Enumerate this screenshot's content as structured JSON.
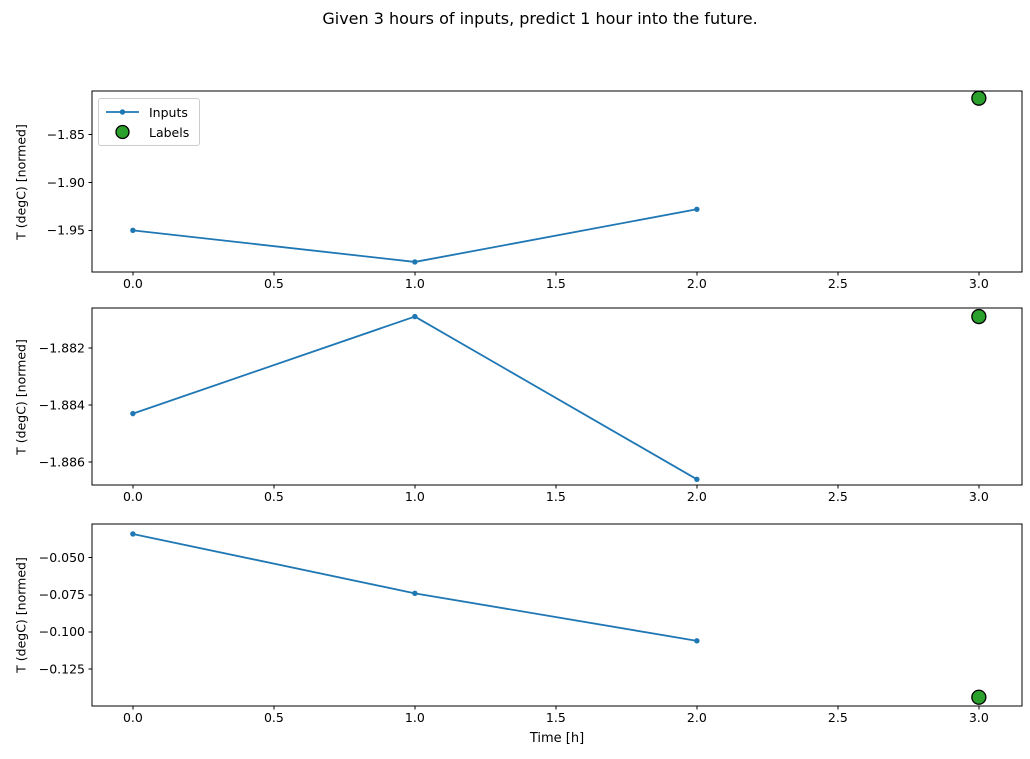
{
  "title": "Given 3 hours of inputs, predict 1 hour into the future.",
  "colors": {
    "inputs": "#1f77b4",
    "labels_fill": "#2ca02c",
    "labels_edge": "#000000",
    "axes": "#000000"
  },
  "legend": {
    "items": [
      {
        "label": "Inputs",
        "type": "line"
      },
      {
        "label": "Labels",
        "type": "point"
      }
    ]
  },
  "chart_data": [
    {
      "type": "line",
      "ylabel": "T (degC) [normed]",
      "xlabel": "",
      "x": [
        0.0,
        1.0,
        2.0
      ],
      "series": [
        {
          "name": "Inputs",
          "values": [
            -1.95,
            -1.983,
            -1.928
          ]
        }
      ],
      "label_point": {
        "name": "Labels",
        "x": 3.0,
        "y": -1.812
      },
      "xlim": [
        -0.145,
        3.153
      ],
      "ylim": [
        -1.9935,
        -1.8045
      ],
      "xticks": [
        0.0,
        0.5,
        1.0,
        1.5,
        2.0,
        2.5,
        3.0
      ],
      "xtick_labels": [
        "0.0",
        "0.5",
        "1.0",
        "1.5",
        "2.0",
        "2.5",
        "3.0"
      ],
      "yticks": [
        -1.85,
        -1.9,
        -1.95
      ],
      "ytick_labels": [
        "−1.85",
        "−1.90",
        "−1.95"
      ],
      "grid": false,
      "legend_visible": true
    },
    {
      "type": "line",
      "ylabel": "T (degC) [normed]",
      "xlabel": "",
      "x": [
        0.0,
        1.0,
        2.0
      ],
      "series": [
        {
          "name": "Inputs",
          "values": [
            -1.8843,
            -1.8809,
            -1.8866
          ]
        }
      ],
      "label_point": {
        "name": "Labels",
        "x": 3.0,
        "y": -1.8809
      },
      "xlim": [
        -0.145,
        3.153
      ],
      "ylim": [
        -1.8868,
        -1.8806
      ],
      "xticks": [
        0.0,
        0.5,
        1.0,
        1.5,
        2.0,
        2.5,
        3.0
      ],
      "xtick_labels": [
        "0.0",
        "0.5",
        "1.0",
        "1.5",
        "2.0",
        "2.5",
        "3.0"
      ],
      "yticks": [
        -1.882,
        -1.884,
        -1.886
      ],
      "ytick_labels": [
        "−1.882",
        "−1.884",
        "−1.886"
      ],
      "grid": false,
      "legend_visible": false
    },
    {
      "type": "line",
      "ylabel": "T (degC) [normed]",
      "xlabel": "Time [h]",
      "x": [
        0.0,
        1.0,
        2.0
      ],
      "series": [
        {
          "name": "Inputs",
          "values": [
            -0.034,
            -0.074,
            -0.106
          ]
        }
      ],
      "label_point": {
        "name": "Labels",
        "x": 3.0,
        "y": -0.144
      },
      "xlim": [
        -0.145,
        3.153
      ],
      "ylim": [
        -0.1499,
        -0.0273
      ],
      "xticks": [
        0.0,
        0.5,
        1.0,
        1.5,
        2.0,
        2.5,
        3.0
      ],
      "xtick_labels": [
        "0.0",
        "0.5",
        "1.0",
        "1.5",
        "2.0",
        "2.5",
        "3.0"
      ],
      "yticks": [
        -0.05,
        -0.075,
        -0.1,
        -0.125
      ],
      "ytick_labels": [
        "−0.050",
        "−0.075",
        "−0.100",
        "−0.125"
      ],
      "grid": false,
      "legend_visible": false
    }
  ]
}
